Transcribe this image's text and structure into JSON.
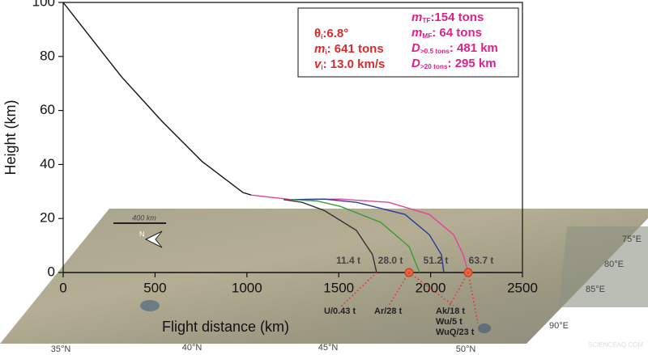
{
  "chart_data": {
    "type": "line",
    "xlabel": "Flight distance (km)",
    "ylabel": "Height (km)",
    "xlim": [
      0,
      2500
    ],
    "ylim": [
      0,
      100
    ],
    "xticks": [
      0,
      500,
      1000,
      1500,
      2000,
      2500
    ],
    "yticks": [
      0,
      20,
      40,
      60,
      80,
      100
    ],
    "series": [
      {
        "color": "#111111",
        "x": [
          0,
          150,
          317,
          538,
          758,
          979,
          1023
        ],
        "values": [
          100,
          87,
          72.5,
          56,
          41,
          29.6,
          28.7
        ]
      },
      {
        "color": "#e0449a",
        "x": [
          1023,
          1243,
          1508,
          1772,
          1993,
          2125,
          2178,
          2205
        ],
        "values": [
          28.7,
          27,
          27.2,
          26,
          21.5,
          14,
          6.6,
          0
        ]
      },
      {
        "color": "#2b3a9a",
        "x": [
          1243,
          1420,
          1596,
          1861,
          1993,
          2059,
          2072
        ],
        "values": [
          27,
          27.2,
          26,
          21.5,
          14,
          6.6,
          0
        ]
      },
      {
        "color": "#3a9a3a",
        "x": [
          1243,
          1380,
          1508,
          1728,
          1883,
          1940
        ],
        "values": [
          27,
          26.5,
          24.5,
          18.6,
          9.6,
          0
        ]
      },
      {
        "color": "#333333",
        "x": [
          1200,
          1300,
          1420,
          1596,
          1684,
          1706
        ],
        "values": [
          27,
          26,
          23,
          15.6,
          6.6,
          0
        ]
      }
    ],
    "params_left": [
      {
        "sym": "θ",
        "sub": "i",
        "val": ":6.8°"
      },
      {
        "sym": "m",
        "sub": "i",
        "val": ": 641 tons"
      },
      {
        "sym": "v",
        "sub": "i",
        "val": ": 13.0 km/s"
      }
    ],
    "params_right": [
      {
        "sym": "m",
        "sub": "TF",
        "val": ":154 tons"
      },
      {
        "sym": "m",
        "sub": "MF",
        "val": ": 64 tons"
      },
      {
        "sym": "D",
        "sub": ">0.5 tons",
        "val": ": 481 km"
      },
      {
        "sym": "D",
        "sub": ">20 tons",
        "val": ": 295 km"
      }
    ],
    "mass_labels": [
      "11.4 t",
      "28.0 t",
      "51.2 t",
      "63.7 t"
    ],
    "meteorite_labels": [
      "U/0.43 t",
      "Ar/28 t",
      "Ak/18 t",
      "Wu/5 t",
      "WuQ/23 t"
    ],
    "map": {
      "scale": "400 km",
      "north": "N",
      "latitudes": [
        "35°N",
        "40°N",
        "45°N",
        "50°N"
      ],
      "longitudes": [
        "75°E",
        "80°E",
        "85°E",
        "90°E"
      ],
      "watermark": "SCIENCEAQ.COM"
    }
  }
}
